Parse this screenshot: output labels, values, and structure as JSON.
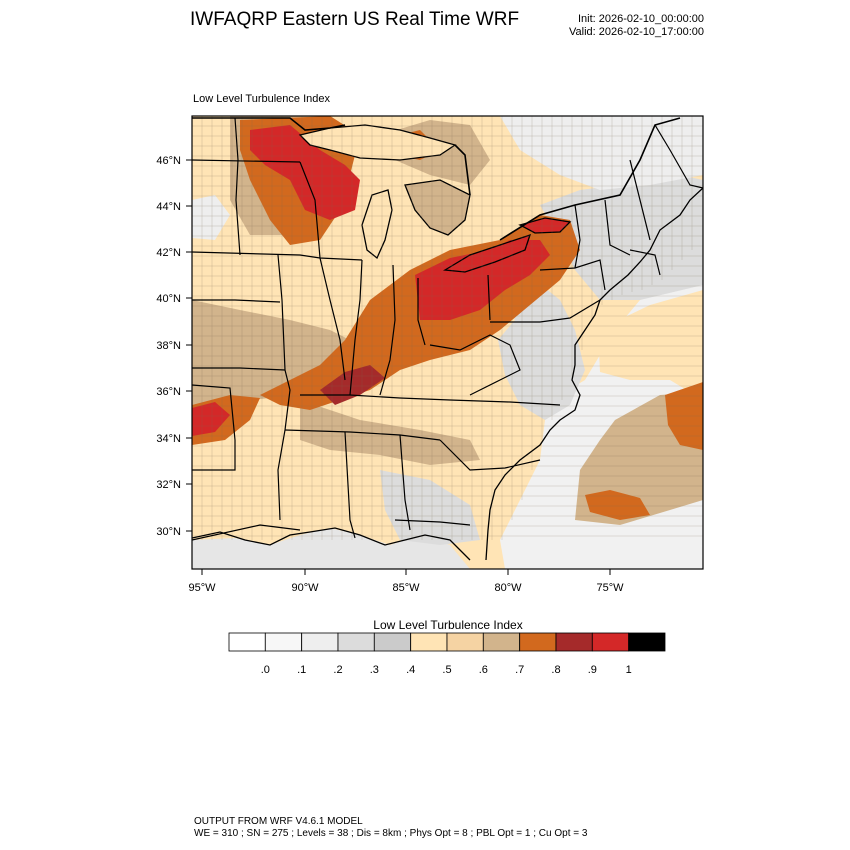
{
  "header": {
    "title": "IWFAQRP Eastern US Real Time WRF",
    "init": "Init: 2026-02-10_00:00:00",
    "valid": "Valid: 2026-02-10_17:00:00"
  },
  "plot": {
    "title": "Low Level Turbulence Index",
    "lat_labels": [
      "46°N",
      "44°N",
      "42°N",
      "40°N",
      "38°N",
      "36°N",
      "34°N",
      "32°N",
      "30°N"
    ],
    "lon_labels": [
      "95°W",
      "90°W",
      "85°W",
      "80°W",
      "75°W"
    ]
  },
  "colorbar": {
    "title": "Low Level Turbulence Index",
    "labels": [
      ".0",
      ".1",
      ".2",
      ".3",
      ".4",
      ".5",
      ".6",
      ".7",
      ".8",
      ".9",
      "1"
    ],
    "colors": [
      "#ffffff",
      "#f7f7f7",
      "#eeeeee",
      "#dcdcdc",
      "#cbcbcb",
      "#ffe4b5",
      "#f5d3a3",
      "#d2b48c",
      "#d2691e",
      "#a52a2a",
      "#d42828",
      "#000000"
    ]
  },
  "footer": {
    "line1": "OUTPUT FROM WRF V4.6.1 MODEL",
    "line2": "WE = 310 ; SN = 275 ; Levels = 38 ; Dis = 8km ; Phys Opt = 8 ; PBL Opt = 1 ; Cu Opt = 3"
  }
}
